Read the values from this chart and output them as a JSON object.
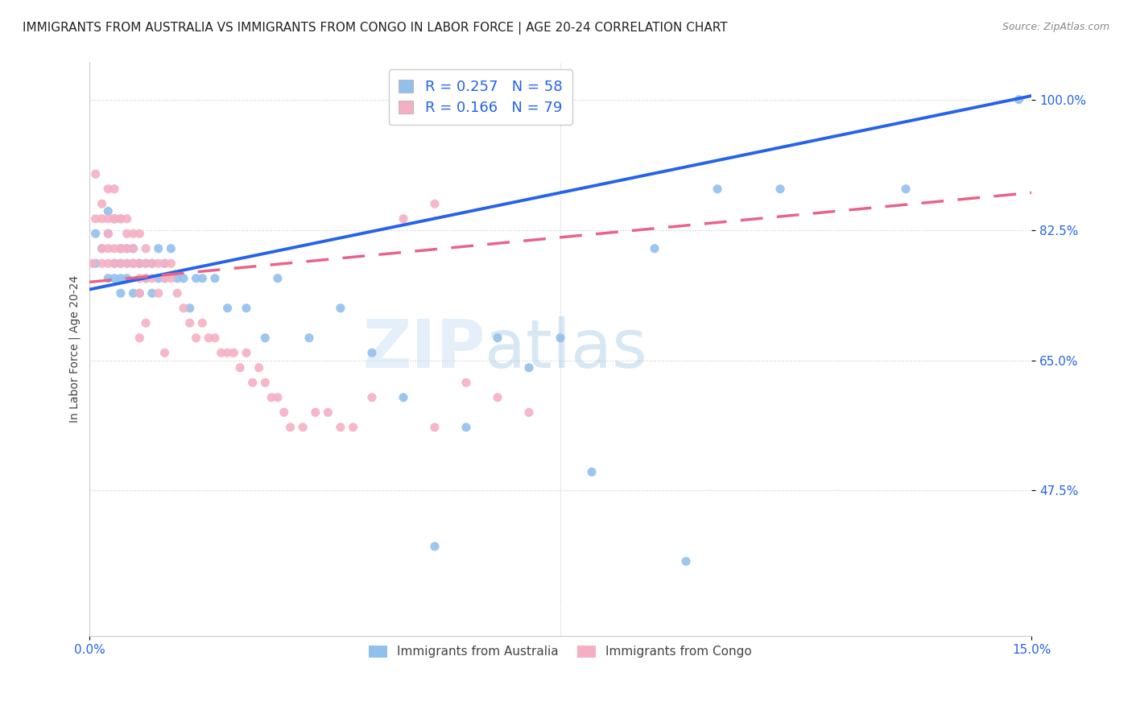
{
  "title": "IMMIGRANTS FROM AUSTRALIA VS IMMIGRANTS FROM CONGO IN LABOR FORCE | AGE 20-24 CORRELATION CHART",
  "source": "Source: ZipAtlas.com",
  "ylabel_label": "In Labor Force | Age 20-24",
  "xlim": [
    0.0,
    0.15
  ],
  "ylim": [
    0.28,
    1.05
  ],
  "yticks": [
    1.0,
    0.825,
    0.65,
    0.475
  ],
  "ytick_labels": [
    "100.0%",
    "82.5%",
    "65.0%",
    "47.5%"
  ],
  "xticks": [
    0.0,
    0.15
  ],
  "xtick_labels": [
    "0.0%",
    "15.0%"
  ],
  "legend_r_australia": "0.257",
  "legend_n_australia": "58",
  "legend_r_congo": "0.166",
  "legend_n_congo": "79",
  "australia_color": "#92c0ed",
  "congo_color": "#f5afc4",
  "trendline_australia_color": "#2563eb",
  "trendline_congo_color": "#e8638a",
  "background_color": "#ffffff",
  "watermark_zip": "ZIP",
  "watermark_atlas": "atlas",
  "title_fontsize": 11,
  "tick_fontsize": 11,
  "ylabel_fontsize": 10,
  "trendline_y0_australia": 0.745,
  "trendline_y1_australia": 1.005,
  "trendline_y0_congo": 0.755,
  "trendline_y1_congo": 0.875,
  "australia_x": [
    0.001,
    0.001,
    0.002,
    0.003,
    0.003,
    0.003,
    0.004,
    0.004,
    0.004,
    0.005,
    0.005,
    0.005,
    0.005,
    0.005,
    0.006,
    0.006,
    0.006,
    0.007,
    0.007,
    0.007,
    0.008,
    0.008,
    0.008,
    0.009,
    0.009,
    0.01,
    0.01,
    0.011,
    0.011,
    0.012,
    0.012,
    0.013,
    0.014,
    0.015,
    0.016,
    0.017,
    0.018,
    0.02,
    0.022,
    0.025,
    0.028,
    0.03,
    0.035,
    0.04,
    0.045,
    0.05,
    0.055,
    0.06,
    0.065,
    0.07,
    0.075,
    0.08,
    0.09,
    0.095,
    0.1,
    0.11,
    0.13,
    0.148
  ],
  "australia_y": [
    0.78,
    0.82,
    0.8,
    0.85,
    0.76,
    0.82,
    0.78,
    0.84,
    0.76,
    0.8,
    0.76,
    0.74,
    0.78,
    0.8,
    0.78,
    0.76,
    0.8,
    0.78,
    0.74,
    0.8,
    0.78,
    0.74,
    0.78,
    0.76,
    0.78,
    0.78,
    0.74,
    0.76,
    0.8,
    0.76,
    0.78,
    0.8,
    0.76,
    0.76,
    0.72,
    0.76,
    0.76,
    0.76,
    0.72,
    0.72,
    0.68,
    0.76,
    0.68,
    0.72,
    0.66,
    0.6,
    0.4,
    0.56,
    0.68,
    0.64,
    0.68,
    0.5,
    0.8,
    0.38,
    0.88,
    0.88,
    0.88,
    1.0
  ],
  "congo_x": [
    0.0005,
    0.001,
    0.001,
    0.002,
    0.002,
    0.002,
    0.002,
    0.003,
    0.003,
    0.003,
    0.003,
    0.003,
    0.004,
    0.004,
    0.004,
    0.004,
    0.004,
    0.005,
    0.005,
    0.005,
    0.005,
    0.005,
    0.006,
    0.006,
    0.006,
    0.006,
    0.007,
    0.007,
    0.007,
    0.007,
    0.008,
    0.008,
    0.008,
    0.008,
    0.009,
    0.009,
    0.009,
    0.01,
    0.01,
    0.011,
    0.011,
    0.012,
    0.012,
    0.013,
    0.013,
    0.014,
    0.015,
    0.016,
    0.017,
    0.018,
    0.019,
    0.02,
    0.021,
    0.022,
    0.023,
    0.024,
    0.025,
    0.026,
    0.027,
    0.028,
    0.029,
    0.03,
    0.031,
    0.032,
    0.034,
    0.036,
    0.038,
    0.04,
    0.042,
    0.045,
    0.05,
    0.055,
    0.06,
    0.065,
    0.07,
    0.008,
    0.009,
    0.012,
    0.055
  ],
  "congo_y": [
    0.78,
    0.9,
    0.84,
    0.86,
    0.8,
    0.84,
    0.78,
    0.88,
    0.84,
    0.8,
    0.78,
    0.82,
    0.88,
    0.84,
    0.8,
    0.78,
    0.84,
    0.84,
    0.8,
    0.78,
    0.84,
    0.8,
    0.84,
    0.8,
    0.78,
    0.82,
    0.82,
    0.78,
    0.8,
    0.78,
    0.82,
    0.78,
    0.76,
    0.74,
    0.8,
    0.78,
    0.76,
    0.78,
    0.76,
    0.78,
    0.74,
    0.78,
    0.76,
    0.78,
    0.76,
    0.74,
    0.72,
    0.7,
    0.68,
    0.7,
    0.68,
    0.68,
    0.66,
    0.66,
    0.66,
    0.64,
    0.66,
    0.62,
    0.64,
    0.62,
    0.6,
    0.6,
    0.58,
    0.56,
    0.56,
    0.58,
    0.58,
    0.56,
    0.56,
    0.6,
    0.84,
    0.86,
    0.62,
    0.6,
    0.58,
    0.68,
    0.7,
    0.66,
    0.56
  ]
}
